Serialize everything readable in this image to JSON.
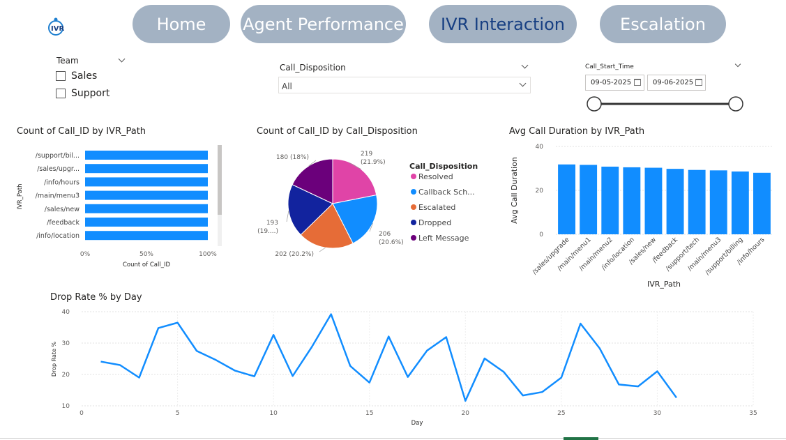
{
  "logo": {
    "text": "IVR"
  },
  "nav": [
    {
      "label": "Home",
      "active": false
    },
    {
      "label": "Agent Performance",
      "active": false
    },
    {
      "label": "IVR Interaction",
      "active": true
    },
    {
      "label": "Escalation",
      "active": false
    }
  ],
  "filters": {
    "team": {
      "title": "Team",
      "options": [
        "Sales",
        "Support"
      ]
    },
    "disposition": {
      "title": "Call_Disposition",
      "value": "All"
    },
    "start_time": {
      "title": "Call_Start_Time",
      "from": "09-05-2025",
      "to": "09-06-2025"
    }
  },
  "colors": {
    "bar": "#118dff",
    "resolved": "#e044a7",
    "callback": "#118dff",
    "escalated": "#e66c37",
    "dropped": "#12239e",
    "left_message": "#6b007b"
  },
  "chart_data": [
    {
      "type": "bar",
      "orientation": "horizontal",
      "title": "Count of Call_ID by IVR_Path",
      "xlabel": "Count of Call_ID",
      "ylabel": "IVR_Path",
      "categories": [
        "/support/bil...",
        "/sales/upgr...",
        "/info/hours",
        "/main/menu3",
        "/sales/new",
        "/feedback",
        "/info/location"
      ],
      "values": [
        100,
        100,
        100,
        100,
        100,
        100,
        100
      ],
      "xticks": [
        "0%",
        "50%",
        "100%"
      ],
      "xlim": [
        0,
        100
      ]
    },
    {
      "type": "pie",
      "title": "Count of Call_ID by Call_Disposition",
      "legend_title": "Call_Disposition",
      "legend": [
        "Resolved",
        "Callback Sch...",
        "Escalated",
        "Dropped",
        "Left Message"
      ],
      "slices": [
        {
          "name": "Resolved",
          "value": 219,
          "label": "219",
          "pct": "(21.9%)",
          "color": "#e044a7"
        },
        {
          "name": "Callback Sch...",
          "value": 206,
          "label": "206",
          "pct": "(20.6%)",
          "color": "#118dff"
        },
        {
          "name": "Escalated",
          "value": 202,
          "label": "202 (20.2%)",
          "pct": "",
          "color": "#e66c37"
        },
        {
          "name": "Dropped",
          "value": 193,
          "label": "193",
          "pct": "(19....)",
          "color": "#12239e"
        },
        {
          "name": "Left Message",
          "value": 180,
          "label": "180 (18%)",
          "pct": "",
          "color": "#6b007b"
        }
      ]
    },
    {
      "type": "bar",
      "title": "Avg Call Duration by IVR_Path",
      "xlabel": "IVR_Path",
      "ylabel": "Avg Call Duration",
      "categories": [
        "/sales/upgrade",
        "/main/menu1",
        "/main/menu2",
        "/info/location",
        "/sales/new",
        "/feedback",
        "/support/tech",
        "/main/menu3",
        "/support/billing",
        "/info/hours"
      ],
      "values": [
        31.8,
        31.6,
        30.8,
        30.5,
        30.3,
        29.8,
        29.3,
        29.1,
        28.6,
        28.0
      ],
      "yticks": [
        0,
        20,
        40
      ],
      "ylim": [
        0,
        40
      ]
    },
    {
      "type": "line",
      "title": "Drop Rate % by Day",
      "xlabel": "Day",
      "ylabel": "Drop Rate %",
      "x": [
        1,
        2,
        3,
        4,
        5,
        6,
        7,
        8,
        9,
        10,
        11,
        12,
        13,
        14,
        15,
        16,
        17,
        18,
        19,
        20,
        21,
        22,
        23,
        24,
        25,
        26,
        27,
        28,
        29,
        30,
        31
      ],
      "y": [
        24.1,
        23.0,
        19.0,
        34.8,
        36.5,
        27.5,
        24.6,
        21.2,
        19.4,
        32.6,
        19.5,
        28.8,
        39.2,
        22.7,
        17.4,
        32.1,
        19.2,
        27.6,
        31.9,
        11.6,
        25.1,
        20.8,
        13.3,
        14.4,
        19.0,
        36.2,
        28.3,
        16.8,
        16.2,
        21.0,
        12.6
      ],
      "xticks": [
        0,
        5,
        10,
        15,
        20,
        25,
        30,
        35
      ],
      "yticks": [
        10,
        20,
        30,
        40
      ],
      "xlim": [
        0,
        35
      ],
      "ylim": [
        10,
        40
      ]
    }
  ]
}
